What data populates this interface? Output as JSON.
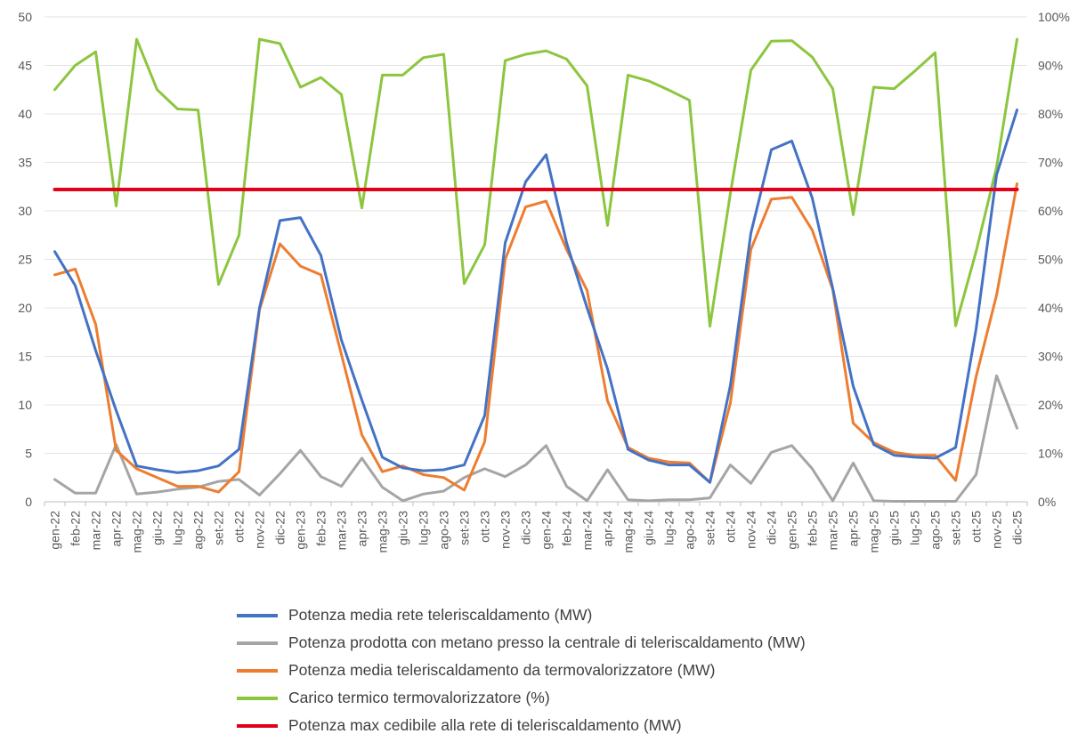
{
  "chart_data": {
    "type": "line",
    "categories": [
      "gen-22",
      "feb-22",
      "mar-22",
      "apr-22",
      "mag-22",
      "giu-22",
      "lug-22",
      "ago-22",
      "set-22",
      "ott-22",
      "nov-22",
      "dic-22",
      "gen-23",
      "feb-23",
      "mar-23",
      "apr-23",
      "mag-23",
      "giu-23",
      "lug-23",
      "ago-23",
      "set-23",
      "ott-23",
      "nov-23",
      "dic-23",
      "gen-24",
      "feb-24",
      "mar-24",
      "apr-24",
      "mag-24",
      "giu-24",
      "lug-24",
      "ago-24",
      "set-24",
      "ott-24",
      "nov-24",
      "dic-24",
      "gen-25",
      "feb-25",
      "mar-25",
      "apr-25",
      "mag-25",
      "giu-25",
      "lug-25",
      "ago-25",
      "set-25",
      "ott-25",
      "nov-25",
      "dic-25"
    ],
    "y_left_ticks": [
      "0",
      "5",
      "10",
      "15",
      "20",
      "25",
      "30",
      "35",
      "40",
      "45",
      "50"
    ],
    "y_right_ticks": [
      "0%",
      "10%",
      "20%",
      "30%",
      "40%",
      "50%",
      "60%",
      "70%",
      "80%",
      "90%",
      "100%"
    ],
    "ylim_left": [
      0,
      50
    ],
    "ylim_right": [
      0,
      100
    ],
    "grid": true,
    "legend_position": "bottom",
    "series": [
      {
        "name": "Potenza media rete teleriscaldamento (MW)",
        "axis": "left",
        "color": "#4472C4",
        "values": [
          25.8,
          22.3,
          15.6,
          9.4,
          3.7,
          3.3,
          3.0,
          3.2,
          3.7,
          5.4,
          20.0,
          29.0,
          29.3,
          25.4,
          16.7,
          10.5,
          4.6,
          3.5,
          3.2,
          3.3,
          3.8,
          8.9,
          26.7,
          33.0,
          35.8,
          26.7,
          20.0,
          13.7,
          5.4,
          4.3,
          3.8,
          3.8,
          2.0,
          12.0,
          27.7,
          36.3,
          37.2,
          31.3,
          22.0,
          11.9,
          5.9,
          4.8,
          4.6,
          4.5,
          5.6,
          17.8,
          33.7,
          40.4
        ]
      },
      {
        "name": "Potenza prodotta con metano presso la centrale di teleriscaldamento (MW)",
        "axis": "left",
        "color": "#A5A5A5",
        "values": [
          2.3,
          0.9,
          0.9,
          5.9,
          0.8,
          1.0,
          1.3,
          1.5,
          2.1,
          2.3,
          0.7,
          2.9,
          5.3,
          2.6,
          1.6,
          4.5,
          1.5,
          0.1,
          0.8,
          1.1,
          2.5,
          3.4,
          2.6,
          3.8,
          5.8,
          1.6,
          0.1,
          3.3,
          0.2,
          0.1,
          0.2,
          0.2,
          0.4,
          3.8,
          1.9,
          5.1,
          5.8,
          3.4,
          0.1,
          4.0,
          0.1,
          0.05,
          0.05,
          0.05,
          0.05,
          2.8,
          13.0,
          7.6
        ]
      },
      {
        "name": "Potenza media teleriscaldamento da termovalorizzatore (MW)",
        "axis": "left",
        "color": "#ED7D31",
        "values": [
          23.4,
          24.0,
          18.3,
          5.3,
          3.4,
          2.5,
          1.6,
          1.6,
          1.0,
          3.1,
          19.8,
          26.6,
          24.3,
          23.4,
          15.2,
          6.9,
          3.1,
          3.7,
          2.8,
          2.5,
          1.2,
          6.2,
          25.0,
          30.4,
          31.0,
          26.0,
          21.8,
          10.4,
          5.6,
          4.5,
          4.1,
          4.0,
          2.0,
          10.2,
          26.0,
          31.2,
          31.4,
          28.0,
          21.9,
          8.1,
          6.1,
          5.1,
          4.8,
          4.8,
          2.2,
          12.9,
          21.3,
          32.8
        ]
      },
      {
        "name": "Carico termico termovalorizzatore (%)",
        "axis": "right",
        "color": "#8CC63F",
        "values": [
          85.0,
          90.0,
          92.8,
          61.0,
          95.4,
          85.0,
          81.0,
          80.8,
          44.8,
          55.0,
          95.4,
          94.5,
          85.5,
          87.5,
          84.0,
          60.6,
          88.0,
          88.0,
          91.6,
          92.3,
          45.0,
          53.0,
          91.0,
          92.3,
          93.0,
          91.3,
          85.8,
          57.0,
          88.0,
          86.8,
          84.9,
          82.8,
          36.2,
          63.6,
          89.0,
          95.0,
          95.1,
          91.7,
          85.2,
          59.2,
          85.5,
          85.2,
          88.8,
          92.6,
          36.3,
          51.6,
          69.0,
          95.4
        ]
      },
      {
        "name": "Potenza max cedibile alla rete di teleriscaldamento (MW)",
        "axis": "left",
        "color": "#E3001B",
        "values": [
          32.2,
          32.2,
          32.2,
          32.2,
          32.2,
          32.2,
          32.2,
          32.2,
          32.2,
          32.2,
          32.2,
          32.2,
          32.2,
          32.2,
          32.2,
          32.2,
          32.2,
          32.2,
          32.2,
          32.2,
          32.2,
          32.2,
          32.2,
          32.2,
          32.2,
          32.2,
          32.2,
          32.2,
          32.2,
          32.2,
          32.2,
          32.2,
          32.2,
          32.2,
          32.2,
          32.2,
          32.2,
          32.2,
          32.2,
          32.2,
          32.2,
          32.2,
          32.2,
          32.2,
          32.2,
          32.2,
          32.2,
          32.2
        ]
      }
    ],
    "legend_order": [
      0,
      1,
      2,
      3,
      4
    ]
  }
}
